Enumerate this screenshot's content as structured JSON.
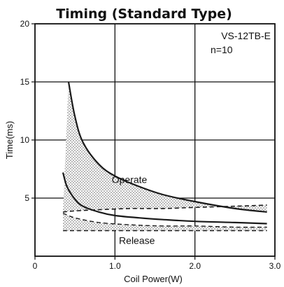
{
  "chart_data": {
    "type": "line",
    "title": "Timing (Standard Type)",
    "xlabel": "Coil Power(W)",
    "ylabel": "Time(ms)",
    "xlim": [
      0,
      3.0
    ],
    "ylim": [
      0,
      20
    ],
    "xticks": [
      {
        "value": 0,
        "label": "0"
      },
      {
        "value": 1.0,
        "label": "1.0"
      },
      {
        "value": 2.0,
        "label": "2.0"
      },
      {
        "value": 3.0,
        "label": "3.0"
      }
    ],
    "yticks": [
      {
        "value": 5,
        "label": "5"
      },
      {
        "value": 10,
        "label": "10"
      },
      {
        "value": 15,
        "label": "15"
      },
      {
        "value": 20,
        "label": "20"
      }
    ],
    "grid": true,
    "annotations": [
      "VS-12TB-E",
      "n=10"
    ],
    "bands": [
      {
        "name": "Operate",
        "upper": {
          "x": [
            0.42,
            0.5,
            0.6,
            0.8,
            1.0,
            1.3,
            1.6,
            2.0,
            2.5,
            2.9
          ],
          "y": [
            15.0,
            12.0,
            9.8,
            7.9,
            6.9,
            6.0,
            5.3,
            4.7,
            4.1,
            3.8
          ]
        },
        "lower": {
          "x": [
            0.35,
            0.5,
            0.8,
            1.2,
            1.6,
            2.0,
            2.5,
            2.9
          ],
          "y": [
            3.8,
            3.9,
            4.0,
            4.1,
            4.1,
            4.2,
            4.3,
            4.4
          ]
        }
      },
      {
        "name": "Release",
        "upper": {
          "x": [
            0.35,
            0.5,
            0.8,
            1.2,
            1.6,
            2.0,
            2.5,
            2.9
          ],
          "y": [
            3.7,
            3.3,
            2.9,
            2.7,
            2.6,
            2.6,
            2.5,
            2.5
          ]
        },
        "lower": {
          "x": [
            0.35,
            0.6,
            1.0,
            1.5,
            2.0,
            2.5,
            2.9
          ],
          "y": [
            2.2,
            2.2,
            2.2,
            2.2,
            2.2,
            2.2,
            2.2
          ]
        }
      }
    ],
    "series": [
      {
        "name": "Operate",
        "x": [
          0.42,
          0.5,
          0.6,
          0.8,
          1.0,
          1.3,
          1.6,
          2.0,
          2.5,
          2.9
        ],
        "y": [
          15.0,
          12.0,
          9.8,
          7.9,
          6.9,
          6.0,
          5.3,
          4.7,
          4.1,
          3.8
        ]
      },
      {
        "name": "Release",
        "x": [
          0.35,
          0.4,
          0.5,
          0.6,
          0.8,
          1.0,
          1.3,
          1.6,
          2.0,
          2.5,
          2.9
        ],
        "y": [
          7.2,
          6.0,
          4.9,
          4.3,
          3.8,
          3.5,
          3.3,
          3.15,
          3.0,
          2.9,
          2.8
        ]
      }
    ],
    "style": {
      "line_color": "#1a1a1a",
      "band_fill": "#b8b8b8",
      "axis_color": "#111111",
      "grid_color": "#111111"
    }
  }
}
